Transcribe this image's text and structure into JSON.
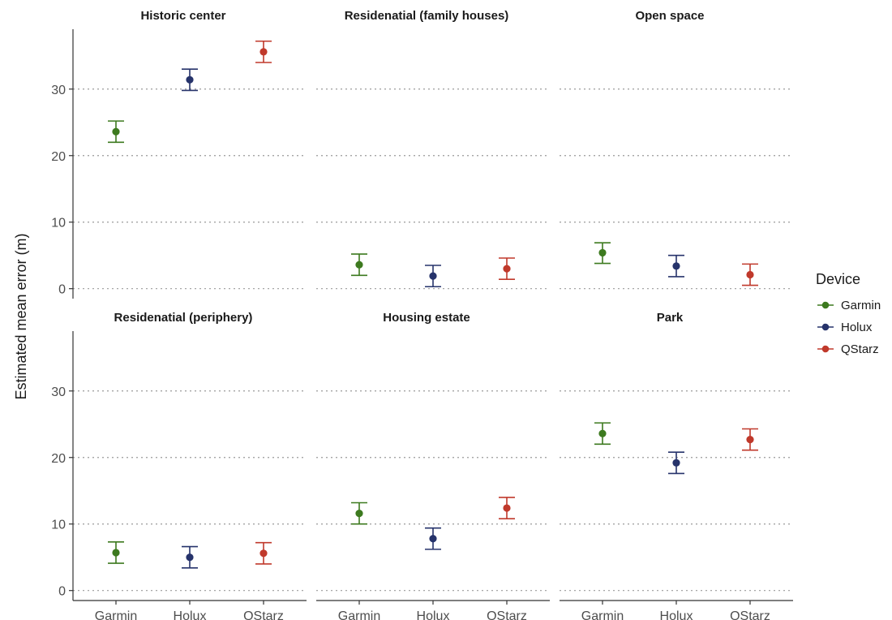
{
  "chart_data": {
    "type": "scatter",
    "ylabel": "Estimated mean error (m)",
    "xlabel": "",
    "categories": [
      "Garmin",
      "Holux",
      "QStarz"
    ],
    "ylim": [
      -1.5,
      39
    ],
    "yticks": [
      0,
      10,
      20,
      30
    ],
    "grid": "horizontal dotted",
    "legend": {
      "title": "Device",
      "placement": "right",
      "entries": [
        {
          "name": "Garmin",
          "color": "#3d7a1f"
        },
        {
          "name": "Holux",
          "color": "#26336b"
        },
        {
          "name": "QStarz",
          "color": "#c0392b"
        }
      ]
    },
    "panels": [
      {
        "title": "Historic center",
        "points": [
          {
            "device": "Garmin",
            "y": 23.6,
            "low": 22.0,
            "high": 25.2
          },
          {
            "device": "Holux",
            "y": 31.4,
            "low": 29.8,
            "high": 33.0
          },
          {
            "device": "QStarz",
            "y": 35.6,
            "low": 34.0,
            "high": 37.2
          }
        ]
      },
      {
        "title": "Residenatial (family houses)",
        "points": [
          {
            "device": "Garmin",
            "y": 3.6,
            "low": 2.0,
            "high": 5.2
          },
          {
            "device": "Holux",
            "y": 1.9,
            "low": 0.3,
            "high": 3.5
          },
          {
            "device": "QStarz",
            "y": 3.0,
            "low": 1.4,
            "high": 4.6
          }
        ]
      },
      {
        "title": "Open space",
        "points": [
          {
            "device": "Garmin",
            "y": 5.4,
            "low": 3.8,
            "high": 6.9
          },
          {
            "device": "Holux",
            "y": 3.4,
            "low": 1.8,
            "high": 5.0
          },
          {
            "device": "QStarz",
            "y": 2.1,
            "low": 0.5,
            "high": 3.7
          }
        ]
      },
      {
        "title": "Residenatial (periphery)",
        "points": [
          {
            "device": "Garmin",
            "y": 5.7,
            "low": 4.1,
            "high": 7.3
          },
          {
            "device": "Holux",
            "y": 5.0,
            "low": 3.4,
            "high": 6.6
          },
          {
            "device": "QStarz",
            "y": 5.6,
            "low": 4.0,
            "high": 7.2
          }
        ]
      },
      {
        "title": "Housing estate",
        "points": [
          {
            "device": "Garmin",
            "y": 11.6,
            "low": 10.0,
            "high": 13.2
          },
          {
            "device": "Holux",
            "y": 7.8,
            "low": 6.2,
            "high": 9.4
          },
          {
            "device": "QStarz",
            "y": 12.4,
            "low": 10.8,
            "high": 14.0
          }
        ]
      },
      {
        "title": "Park",
        "points": [
          {
            "device": "Garmin",
            "y": 23.6,
            "low": 22.0,
            "high": 25.2
          },
          {
            "device": "Holux",
            "y": 19.2,
            "low": 17.6,
            "high": 20.8
          },
          {
            "device": "QStarz",
            "y": 22.7,
            "low": 21.1,
            "high": 24.3
          }
        ]
      }
    ]
  }
}
